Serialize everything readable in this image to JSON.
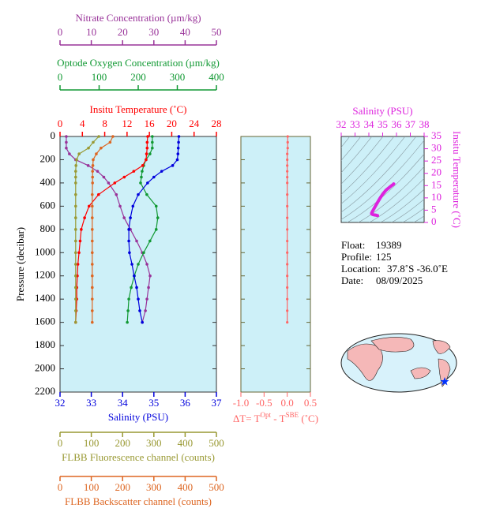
{
  "chart_data": [
    {
      "type": "profile",
      "ylabel": "Pressure (decibar)",
      "ylim": [
        0,
        2200
      ],
      "y_inverted": true,
      "yticks": [
        0,
        200,
        400,
        600,
        800,
        1000,
        1200,
        1400,
        1600,
        1800,
        2000,
        2200
      ],
      "y": [
        0,
        50,
        100,
        150,
        200,
        250,
        300,
        350,
        400,
        500,
        600,
        700,
        800,
        900,
        1000,
        1100,
        1200,
        1300,
        1400,
        1500,
        1600
      ],
      "x_axes": [
        {
          "label": "Nitrate Concentration (µm/kg)",
          "color": "#993399",
          "side": "top",
          "xlim": [
            0,
            50
          ],
          "xticks": [
            0,
            10,
            20,
            30,
            40,
            50
          ],
          "values": [
            2,
            2,
            2,
            3,
            5,
            9,
            12,
            14,
            15.5,
            18,
            19.2,
            20.5,
            22.5,
            24.5,
            26.3,
            27.8,
            28.8,
            28.3,
            27.8,
            27.3,
            26.3
          ]
        },
        {
          "label": "Optode Oxygen Concentration (µm/kg)",
          "color": "#119933",
          "side": "top",
          "xlim": [
            0,
            400
          ],
          "xticks": [
            0,
            100,
            200,
            300,
            400
          ],
          "values": [
            236,
            236,
            236,
            230,
            220,
            214,
            210,
            208,
            206,
            222,
            246,
            250,
            246,
            230,
            214,
            200,
            190,
            182,
            176,
            174,
            172
          ]
        },
        {
          "label": "Insitu Temperature (˚C)",
          "color": "#ff0000",
          "side": "top",
          "xlim": [
            0,
            28
          ],
          "xticks": [
            0,
            4,
            8,
            12,
            16,
            20,
            24,
            28
          ],
          "values": [
            15.7,
            15.6,
            15.6,
            15.5,
            15.4,
            14.8,
            13.2,
            11.5,
            9.8,
            6.9,
            5.2,
            4.4,
            3.8,
            3.6,
            3.4,
            3.2,
            3.1,
            3.0,
            3.0,
            2.9,
            2.8
          ]
        },
        {
          "label": "Salinity (PSU)",
          "color": "#0000dd",
          "side": "bottom",
          "xlim": [
            32,
            37
          ],
          "xticks": [
            32,
            33,
            34,
            35,
            36,
            37
          ],
          "values": [
            35.8,
            35.79,
            35.78,
            35.77,
            35.75,
            35.6,
            35.25,
            35.0,
            34.8,
            34.5,
            34.33,
            34.25,
            34.2,
            34.2,
            34.22,
            34.3,
            34.37,
            34.45,
            34.5,
            34.55,
            34.63
          ]
        },
        {
          "label": "FLBB Fluorescence channel (counts)",
          "color": "#999933",
          "side": "bottom",
          "xlim": [
            0,
            500
          ],
          "xticks": [
            0,
            100,
            200,
            300,
            400,
            500
          ],
          "values": [
            124,
            106,
            91,
            61,
            53,
            51,
            50,
            50,
            50,
            50,
            50,
            50,
            50,
            50,
            50,
            50,
            50,
            50,
            50,
            50,
            50
          ]
        },
        {
          "label": "FLBB Backscatter channel (counts)",
          "color": "#dd6622",
          "side": "bottom",
          "xlim": [
            0,
            500
          ],
          "xticks": [
            0,
            100,
            200,
            300,
            400,
            500
          ],
          "values": [
            169,
            160,
            131,
            116,
            106,
            105,
            104,
            104,
            104,
            103,
            103,
            103,
            103,
            103,
            103,
            103,
            103,
            103,
            103,
            103,
            103
          ]
        }
      ]
    },
    {
      "type": "delta",
      "label_parts": [
        "ΔT= T",
        "Opt",
        " - T",
        "SBE",
        " (˚C)"
      ],
      "color": "#ff6666",
      "xlim": [
        -1,
        0.5
      ],
      "xticks": [
        {
          "value": -1,
          "label": "-1.0"
        },
        -0.5,
        {
          "value": 0,
          "label": "0.0"
        },
        0.5
      ],
      "values": [
        0.01,
        0.01,
        0.01,
        0,
        0,
        0,
        0,
        0,
        0,
        0,
        0,
        0,
        0,
        0,
        0,
        0,
        0,
        0,
        0,
        0,
        0
      ]
    },
    {
      "type": "ts",
      "xlabel": "Salinity (PSU)",
      "ylabel": "Insitu Temperature (˚C)",
      "color": "#dd22dd",
      "xlim": [
        32,
        38
      ],
      "xticks": [
        32,
        33,
        34,
        35,
        36,
        37,
        38
      ],
      "ylim": [
        0,
        35
      ],
      "yticks": [
        0,
        5,
        10,
        15,
        20,
        25,
        30,
        35
      ]
    }
  ],
  "info": [
    {
      "label": "Float:",
      "value": "19389"
    },
    {
      "label": "Profile:",
      "value": "125"
    },
    {
      "label": "Location:",
      "value": "37.8˚S  -36.0˚E"
    },
    {
      "label": "Date:",
      "value": "08/09/2025"
    }
  ]
}
